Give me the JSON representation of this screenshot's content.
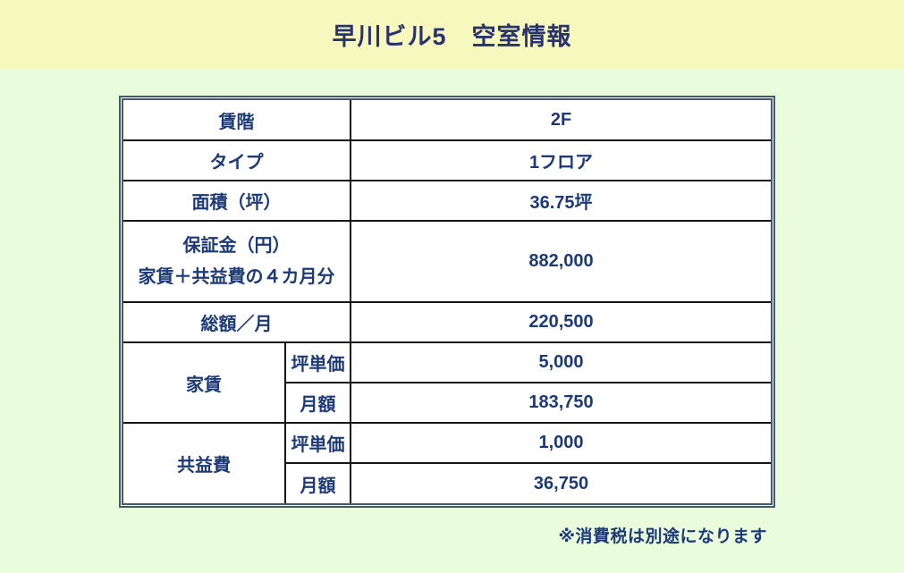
{
  "header": {
    "title": "早川ビル5　空室情報"
  },
  "table": {
    "rows": [
      {
        "label": "賃階",
        "value": "2F"
      },
      {
        "label": "タイプ",
        "value": "1フロア"
      },
      {
        "label": "面積（坪）",
        "value": "36.75坪"
      },
      {
        "label_line1": "保証金（円）",
        "label_line2": "家賃＋共益費の４カ月分",
        "value": "882,000"
      },
      {
        "label": "総額／月",
        "value": "220,500"
      },
      {
        "group": "家賃",
        "sub": "坪単価",
        "value": "5,000"
      },
      {
        "sub": "月額",
        "value": "183,750"
      },
      {
        "group": "共益費",
        "sub": "坪単価",
        "value": "1,000"
      },
      {
        "sub": "月額",
        "value": "36,750"
      }
    ]
  },
  "footnote": "※消費税は別途になります",
  "colors": {
    "header_band_bg": "#f7f8bd",
    "body_bg": "#e9fcdb",
    "outer_border": "#44596a",
    "grid_line": "#141414",
    "text_navy": "#1d3a78",
    "cell_bg": "#ffffff"
  }
}
